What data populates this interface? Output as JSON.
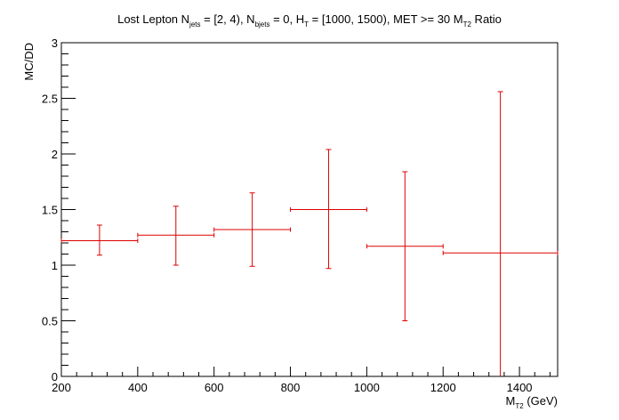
{
  "chart_data": {
    "type": "scatter",
    "title": {
      "parts": [
        {
          "text": "Lost Lepton N"
        },
        {
          "text": "jets",
          "sub": true
        },
        {
          "text": " = [2, 4), N"
        },
        {
          "text": "bjets",
          "sub": true
        },
        {
          "text": " = 0, H"
        },
        {
          "text": "T",
          "sub": true
        },
        {
          "text": " = [1000, 1500), MET >= 30 M"
        },
        {
          "text": "T2",
          "sub": true
        },
        {
          "text": " Ratio"
        }
      ]
    },
    "xlabel": {
      "main": "M",
      "sub": "T2",
      "rest": " (GeV)"
    },
    "ylabel": "MC/DD",
    "xlim": [
      200,
      1500
    ],
    "ylim": [
      0,
      3
    ],
    "x_ticks": [
      200,
      400,
      600,
      800,
      1000,
      1200,
      1400
    ],
    "x_tick_labels": [
      "200",
      "400",
      "600",
      "800",
      "1000",
      "1200",
      "1400"
    ],
    "y_ticks": [
      0,
      0.5,
      1,
      1.5,
      2,
      2.5,
      3
    ],
    "y_tick_labels": [
      "0",
      "0.5",
      "1",
      "1.5",
      "2",
      "2.5",
      "3"
    ],
    "grid": false,
    "legend": "none",
    "series": [
      {
        "color": "#dd0000",
        "points": [
          {
            "x": 300,
            "xlo": 200,
            "xhi": 400,
            "y": 1.22,
            "ylo": 1.09,
            "yhi": 1.36
          },
          {
            "x": 500,
            "xlo": 400,
            "xhi": 600,
            "y": 1.27,
            "ylo": 1.0,
            "yhi": 1.53
          },
          {
            "x": 700,
            "xlo": 600,
            "xhi": 800,
            "y": 1.32,
            "ylo": 0.99,
            "yhi": 1.65
          },
          {
            "x": 900,
            "xlo": 800,
            "xhi": 1000,
            "y": 1.5,
            "ylo": 0.97,
            "yhi": 2.04
          },
          {
            "x": 1100,
            "xlo": 1000,
            "xhi": 1200,
            "y": 1.17,
            "ylo": 0.5,
            "yhi": 1.84
          },
          {
            "x": 1350,
            "xlo": 1200,
            "xhi": 1500,
            "y": 1.11,
            "ylo": -0.34,
            "yhi": 2.56
          }
        ]
      }
    ]
  }
}
